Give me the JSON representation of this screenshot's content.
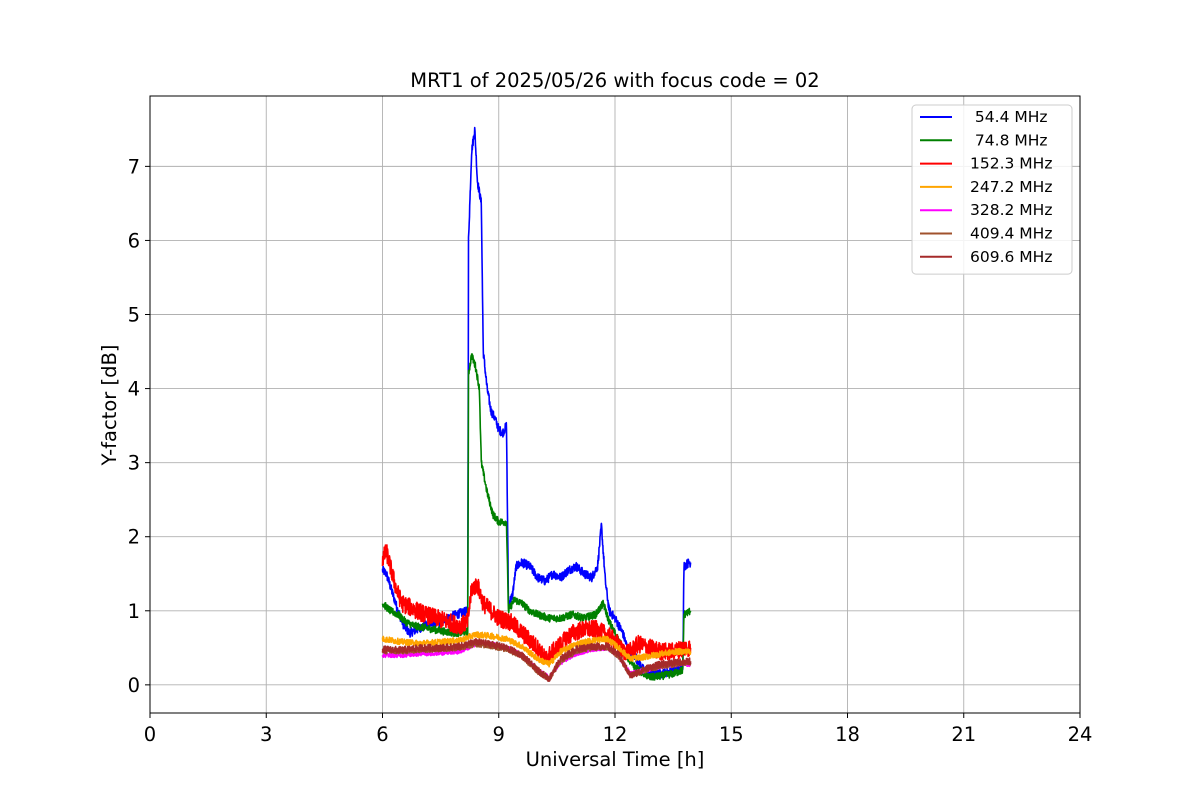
{
  "chart_data": {
    "type": "line",
    "title": "MRT1 of 2025/05/26 with focus code = 02",
    "xlabel": "Universal Time [h]",
    "ylabel": "Y-factor [dB]",
    "xlim": [
      0,
      24
    ],
    "ylim": [
      -0.38,
      7.95
    ],
    "xticks": [
      "0",
      "3",
      "6",
      "9",
      "12",
      "15",
      "18",
      "21",
      "24"
    ],
    "xtick_values": [
      0,
      3,
      6,
      9,
      12,
      15,
      18,
      21,
      24
    ],
    "yticks": [
      "0",
      "1",
      "2",
      "3",
      "4",
      "5",
      "6",
      "7"
    ],
    "ytick_values": [
      0,
      1,
      2,
      3,
      4,
      5,
      6,
      7
    ],
    "grid": true,
    "legend_position": "top-right",
    "series": [
      {
        "name": " 54.4 MHz",
        "color": "#0000ff",
        "noise": 0.06,
        "points": [
          [
            6.0,
            1.55
          ],
          [
            6.1,
            1.5
          ],
          [
            6.25,
            1.25
          ],
          [
            6.4,
            1.0
          ],
          [
            6.55,
            0.8
          ],
          [
            6.7,
            0.7
          ],
          [
            6.9,
            0.75
          ],
          [
            7.1,
            0.8
          ],
          [
            7.3,
            0.82
          ],
          [
            7.5,
            0.85
          ],
          [
            7.7,
            0.9
          ],
          [
            7.9,
            0.95
          ],
          [
            8.1,
            0.98
          ],
          [
            8.2,
            1.0
          ],
          [
            8.22,
            6.0
          ],
          [
            8.3,
            7.2
          ],
          [
            8.38,
            7.5
          ],
          [
            8.45,
            6.8
          ],
          [
            8.55,
            6.5
          ],
          [
            8.6,
            4.5
          ],
          [
            8.7,
            4.0
          ],
          [
            8.8,
            3.7
          ],
          [
            8.9,
            3.6
          ],
          [
            9.0,
            3.45
          ],
          [
            9.1,
            3.4
          ],
          [
            9.2,
            3.5
          ],
          [
            9.25,
            1.1
          ],
          [
            9.35,
            1.2
          ],
          [
            9.45,
            1.6
          ],
          [
            9.6,
            1.65
          ],
          [
            9.8,
            1.6
          ],
          [
            10.0,
            1.45
          ],
          [
            10.2,
            1.4
          ],
          [
            10.4,
            1.5
          ],
          [
            10.6,
            1.45
          ],
          [
            10.8,
            1.55
          ],
          [
            11.0,
            1.6
          ],
          [
            11.2,
            1.5
          ],
          [
            11.4,
            1.45
          ],
          [
            11.55,
            1.6
          ],
          [
            11.65,
            2.15
          ],
          [
            11.75,
            1.4
          ],
          [
            11.85,
            1.0
          ],
          [
            12.0,
            0.9
          ],
          [
            12.2,
            0.7
          ],
          [
            12.35,
            0.45
          ],
          [
            12.5,
            0.4
          ],
          [
            12.8,
            0.15
          ],
          [
            13.2,
            0.15
          ],
          [
            13.6,
            0.2
          ],
          [
            13.75,
            0.25
          ],
          [
            13.78,
            1.6
          ],
          [
            13.9,
            1.65
          ],
          [
            13.95,
            1.65
          ]
        ]
      },
      {
        "name": " 74.8 MHz",
        "color": "#008000",
        "noise": 0.05,
        "points": [
          [
            6.0,
            1.1
          ],
          [
            6.2,
            1.0
          ],
          [
            6.4,
            0.95
          ],
          [
            6.6,
            0.85
          ],
          [
            6.8,
            0.8
          ],
          [
            7.0,
            0.78
          ],
          [
            7.3,
            0.75
          ],
          [
            7.6,
            0.72
          ],
          [
            7.9,
            0.7
          ],
          [
            8.2,
            0.72
          ],
          [
            8.22,
            4.2
          ],
          [
            8.3,
            4.45
          ],
          [
            8.4,
            4.3
          ],
          [
            8.5,
            4.0
          ],
          [
            8.55,
            3.0
          ],
          [
            8.7,
            2.6
          ],
          [
            8.85,
            2.3
          ],
          [
            9.0,
            2.2
          ],
          [
            9.2,
            2.2
          ],
          [
            9.25,
            1.0
          ],
          [
            9.4,
            1.15
          ],
          [
            9.6,
            1.1
          ],
          [
            9.8,
            1.0
          ],
          [
            10.0,
            0.95
          ],
          [
            10.3,
            0.9
          ],
          [
            10.6,
            0.9
          ],
          [
            10.9,
            0.95
          ],
          [
            11.2,
            0.9
          ],
          [
            11.5,
            0.95
          ],
          [
            11.7,
            1.1
          ],
          [
            11.85,
            0.85
          ],
          [
            12.0,
            0.7
          ],
          [
            12.2,
            0.5
          ],
          [
            12.4,
            0.3
          ],
          [
            12.6,
            0.2
          ],
          [
            12.9,
            0.1
          ],
          [
            13.2,
            0.12
          ],
          [
            13.5,
            0.15
          ],
          [
            13.75,
            0.2
          ],
          [
            13.78,
            0.95
          ],
          [
            13.95,
            1.0
          ]
        ]
      },
      {
        "name": "152.3 MHz",
        "color": "#ff0000",
        "noise": 0.12,
        "points": [
          [
            6.0,
            1.7
          ],
          [
            6.1,
            1.8
          ],
          [
            6.2,
            1.6
          ],
          [
            6.35,
            1.3
          ],
          [
            6.5,
            1.1
          ],
          [
            6.7,
            1.05
          ],
          [
            6.9,
            1.0
          ],
          [
            7.1,
            0.95
          ],
          [
            7.4,
            0.9
          ],
          [
            7.7,
            0.85
          ],
          [
            8.0,
            0.8
          ],
          [
            8.2,
            0.85
          ],
          [
            8.3,
            1.3
          ],
          [
            8.45,
            1.35
          ],
          [
            8.6,
            1.1
          ],
          [
            8.8,
            1.0
          ],
          [
            9.0,
            0.9
          ],
          [
            9.3,
            0.85
          ],
          [
            9.5,
            0.75
          ],
          [
            9.8,
            0.6
          ],
          [
            10.0,
            0.5
          ],
          [
            10.2,
            0.35
          ],
          [
            10.4,
            0.45
          ],
          [
            10.6,
            0.55
          ],
          [
            10.9,
            0.7
          ],
          [
            11.2,
            0.75
          ],
          [
            11.5,
            0.75
          ],
          [
            11.7,
            0.7
          ],
          [
            12.0,
            0.6
          ],
          [
            12.2,
            0.45
          ],
          [
            12.4,
            0.45
          ],
          [
            12.6,
            0.55
          ],
          [
            12.9,
            0.5
          ],
          [
            13.2,
            0.45
          ],
          [
            13.5,
            0.45
          ],
          [
            13.8,
            0.5
          ],
          [
            13.95,
            0.5
          ]
        ]
      },
      {
        "name": "247.2 MHz",
        "color": "#ffa500",
        "noise": 0.04,
        "points": [
          [
            6.0,
            0.62
          ],
          [
            6.5,
            0.58
          ],
          [
            7.0,
            0.56
          ],
          [
            7.5,
            0.58
          ],
          [
            8.0,
            0.6
          ],
          [
            8.4,
            0.68
          ],
          [
            8.8,
            0.66
          ],
          [
            9.2,
            0.62
          ],
          [
            9.6,
            0.52
          ],
          [
            10.0,
            0.35
          ],
          [
            10.3,
            0.28
          ],
          [
            10.6,
            0.45
          ],
          [
            11.0,
            0.55
          ],
          [
            11.4,
            0.6
          ],
          [
            11.8,
            0.62
          ],
          [
            12.1,
            0.5
          ],
          [
            12.4,
            0.35
          ],
          [
            12.8,
            0.38
          ],
          [
            13.2,
            0.42
          ],
          [
            13.6,
            0.45
          ],
          [
            13.95,
            0.45
          ]
        ]
      },
      {
        "name": "328.2 MHz",
        "color": "#ff00ff",
        "noise": 0.03,
        "points": [
          [
            6.0,
            0.4
          ],
          [
            6.5,
            0.4
          ],
          [
            7.0,
            0.42
          ],
          [
            7.5,
            0.43
          ],
          [
            8.0,
            0.45
          ],
          [
            8.4,
            0.55
          ],
          [
            8.8,
            0.55
          ],
          [
            9.2,
            0.5
          ],
          [
            9.6,
            0.4
          ],
          [
            10.0,
            0.2
          ],
          [
            10.3,
            0.1
          ],
          [
            10.6,
            0.3
          ],
          [
            11.0,
            0.42
          ],
          [
            11.4,
            0.48
          ],
          [
            11.8,
            0.5
          ],
          [
            12.1,
            0.38
          ],
          [
            12.4,
            0.15
          ],
          [
            12.8,
            0.2
          ],
          [
            13.2,
            0.25
          ],
          [
            13.6,
            0.28
          ],
          [
            13.95,
            0.28
          ]
        ]
      },
      {
        "name": "409.4 MHz",
        "color": "#a0522d",
        "noise": 0.035,
        "points": [
          [
            6.0,
            0.45
          ],
          [
            6.5,
            0.45
          ],
          [
            7.0,
            0.47
          ],
          [
            7.5,
            0.48
          ],
          [
            8.0,
            0.5
          ],
          [
            8.4,
            0.55
          ],
          [
            8.8,
            0.52
          ],
          [
            9.2,
            0.48
          ],
          [
            9.6,
            0.38
          ],
          [
            10.0,
            0.18
          ],
          [
            10.3,
            0.08
          ],
          [
            10.6,
            0.32
          ],
          [
            11.0,
            0.45
          ],
          [
            11.4,
            0.5
          ],
          [
            11.8,
            0.5
          ],
          [
            12.1,
            0.38
          ],
          [
            12.4,
            0.12
          ],
          [
            12.8,
            0.2
          ],
          [
            13.2,
            0.25
          ],
          [
            13.6,
            0.28
          ],
          [
            13.95,
            0.3
          ]
        ]
      },
      {
        "name": "609.6 MHz",
        "color": "#a52a2a",
        "noise": 0.045,
        "points": [
          [
            6.0,
            0.48
          ],
          [
            6.5,
            0.47
          ],
          [
            7.0,
            0.5
          ],
          [
            7.5,
            0.5
          ],
          [
            8.0,
            0.52
          ],
          [
            8.4,
            0.58
          ],
          [
            8.8,
            0.55
          ],
          [
            9.2,
            0.5
          ],
          [
            9.6,
            0.4
          ],
          [
            10.0,
            0.2
          ],
          [
            10.3,
            0.08
          ],
          [
            10.6,
            0.35
          ],
          [
            11.0,
            0.48
          ],
          [
            11.4,
            0.52
          ],
          [
            11.8,
            0.52
          ],
          [
            12.1,
            0.4
          ],
          [
            12.4,
            0.12
          ],
          [
            12.8,
            0.22
          ],
          [
            13.2,
            0.28
          ],
          [
            13.6,
            0.3
          ],
          [
            13.95,
            0.32
          ]
        ]
      }
    ]
  }
}
